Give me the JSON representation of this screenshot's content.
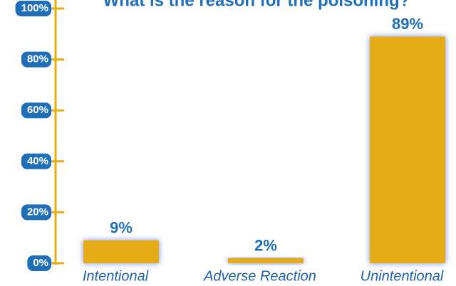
{
  "chart_data": {
    "type": "bar",
    "title": "What is the reason for the poisoning?",
    "categories": [
      "Intentional",
      "Adverse Reaction",
      "Unintentional"
    ],
    "values": [
      9,
      2,
      89
    ],
    "value_labels": [
      "9%",
      "2%",
      "89%"
    ],
    "color": "#e6ac12",
    "ylim": [
      0,
      100
    ],
    "yticks": [
      {
        "value": 0,
        "label": "0%"
      },
      {
        "value": 20,
        "label": "20%"
      },
      {
        "value": 40,
        "label": "40%"
      },
      {
        "value": 60,
        "label": "60%"
      },
      {
        "value": 80,
        "label": "80%"
      },
      {
        "value": 100,
        "label": "100%"
      }
    ]
  }
}
